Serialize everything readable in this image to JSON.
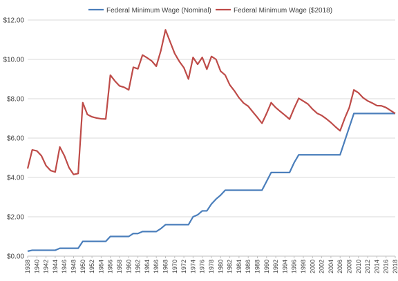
{
  "chart_data": {
    "type": "line",
    "title": "",
    "xlabel": "",
    "ylabel": "",
    "x": [
      1938,
      1939,
      1940,
      1941,
      1942,
      1943,
      1944,
      1945,
      1946,
      1947,
      1948,
      1949,
      1950,
      1951,
      1952,
      1953,
      1954,
      1955,
      1956,
      1957,
      1958,
      1959,
      1960,
      1961,
      1962,
      1963,
      1964,
      1965,
      1966,
      1967,
      1968,
      1969,
      1970,
      1971,
      1972,
      1973,
      1974,
      1975,
      1976,
      1977,
      1978,
      1979,
      1980,
      1981,
      1982,
      1983,
      1984,
      1985,
      1986,
      1987,
      1988,
      1989,
      1990,
      1991,
      1992,
      1993,
      1994,
      1995,
      1996,
      1997,
      1998,
      1999,
      2000,
      2001,
      2002,
      2003,
      2004,
      2005,
      2006,
      2007,
      2008,
      2009,
      2010,
      2011,
      2012,
      2013,
      2014,
      2015,
      2016,
      2017,
      2018
    ],
    "x_tick_labels": [
      "1938",
      "1940",
      "1942",
      "1944",
      "1946",
      "1948",
      "1950",
      "1952",
      "1954",
      "1956",
      "1958",
      "1960",
      "1962",
      "1964",
      "1966",
      "1968",
      "1970",
      "1972",
      "1974",
      "1976",
      "1978",
      "1980",
      "1982",
      "1984",
      "1986",
      "1988",
      "1990",
      "1992",
      "1994",
      "1996",
      "1998",
      "2000",
      "2002",
      "2004",
      "2006",
      "2008",
      "2010",
      "2012",
      "2014",
      "2016",
      "2018"
    ],
    "y_tick_labels": [
      "$0.00",
      "$2.00",
      "$4.00",
      "$6.00",
      "$8.00",
      "$10.00",
      "$12.00"
    ],
    "ylim": [
      0,
      12
    ],
    "grid": true,
    "legend_position": "top",
    "series": [
      {
        "name": "Federal Minimum Wage (Nominal)",
        "color": "#4a7ebb",
        "values": [
          0.25,
          0.3,
          0.3,
          0.3,
          0.3,
          0.3,
          0.3,
          0.4,
          0.4,
          0.4,
          0.4,
          0.4,
          0.75,
          0.75,
          0.75,
          0.75,
          0.75,
          0.75,
          1.0,
          1.0,
          1.0,
          1.0,
          1.0,
          1.15,
          1.15,
          1.25,
          1.25,
          1.25,
          1.25,
          1.4,
          1.6,
          1.6,
          1.6,
          1.6,
          1.6,
          1.6,
          2.0,
          2.1,
          2.3,
          2.3,
          2.65,
          2.9,
          3.1,
          3.35,
          3.35,
          3.35,
          3.35,
          3.35,
          3.35,
          3.35,
          3.35,
          3.35,
          3.8,
          4.25,
          4.25,
          4.25,
          4.25,
          4.25,
          4.75,
          5.15,
          5.15,
          5.15,
          5.15,
          5.15,
          5.15,
          5.15,
          5.15,
          5.15,
          5.15,
          5.85,
          6.55,
          7.25,
          7.25,
          7.25,
          7.25,
          7.25,
          7.25,
          7.25,
          7.25,
          7.25,
          7.25
        ]
      },
      {
        "name": "Federal Minimum Wage ($2018)",
        "color": "#be4b48",
        "values": [
          4.45,
          5.4,
          5.35,
          5.1,
          4.6,
          4.35,
          4.28,
          5.55,
          5.1,
          4.5,
          4.15,
          4.2,
          7.8,
          7.2,
          7.08,
          7.02,
          6.98,
          6.97,
          9.2,
          8.9,
          8.65,
          8.58,
          8.45,
          9.6,
          9.52,
          10.22,
          10.08,
          9.92,
          9.65,
          10.45,
          11.5,
          10.9,
          10.3,
          9.9,
          9.58,
          9.0,
          10.1,
          9.75,
          10.1,
          9.5,
          10.15,
          10.0,
          9.4,
          9.2,
          8.7,
          8.4,
          8.05,
          7.78,
          7.62,
          7.33,
          7.05,
          6.75,
          7.25,
          7.8,
          7.55,
          7.35,
          7.16,
          6.96,
          7.52,
          8.02,
          7.88,
          7.73,
          7.47,
          7.26,
          7.15,
          6.98,
          6.79,
          6.57,
          6.37,
          7.0,
          7.55,
          8.45,
          8.3,
          8.05,
          7.89,
          7.78,
          7.65,
          7.64,
          7.55,
          7.4,
          7.25
        ]
      }
    ]
  }
}
